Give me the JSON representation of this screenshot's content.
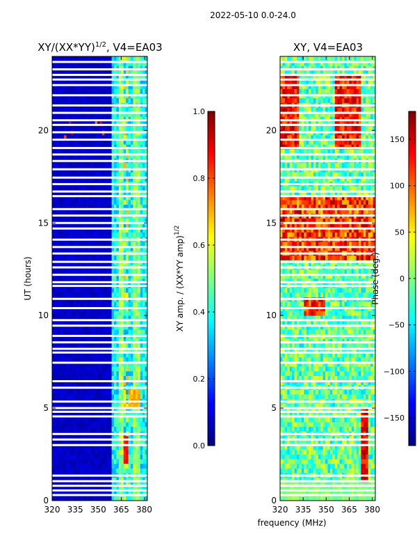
{
  "suptitle": "2022-05-10 0.0-24.0",
  "xlabel_shared": "frequency (MHz)",
  "colors": {
    "frame": "#000000",
    "gap": "#ffffff"
  },
  "chart_data": [
    {
      "type": "heatmap",
      "title": "XY/(XX*YY)",
      "title_sup": "1/2",
      "title_suffix": ", V4=EA03",
      "xlabel": "",
      "ylabel": "UT (hours)",
      "xlim": [
        320,
        382
      ],
      "ylim": [
        0,
        24
      ],
      "xticks": [
        320,
        335,
        350,
        365,
        380
      ],
      "yticks": [
        0,
        5,
        10,
        15,
        20
      ],
      "colormap": "jet",
      "colorbar": {
        "label": "XY amp. / (XX*YY amp)",
        "label_sup": "1/2",
        "range": [
          0.0,
          1.0
        ],
        "ticks": [
          "0.0",
          "0.2",
          "0.4",
          "0.6",
          "0.8",
          "1.0"
        ]
      },
      "description": "Normalized amplitude, low (~0.05) below 359 MHz, elevated (~0.3-0.6) in 359-382 MHz band with vertical bright stripes"
    },
    {
      "type": "heatmap",
      "title": "XY, V4=EA03",
      "xlabel": "frequency (MHz)",
      "ylabel": "",
      "xlim": [
        320,
        382
      ],
      "ylim": [
        0,
        24
      ],
      "xticks": [
        320,
        335,
        350,
        365,
        380
      ],
      "yticks": [
        0,
        5,
        10,
        15,
        20
      ],
      "colormap": "jet",
      "colorbar": {
        "label": "Phase (deg.)",
        "range": [
          -180,
          180
        ],
        "ticks": [
          "−150",
          "−100",
          "−50",
          "0",
          "50",
          "100",
          "150"
        ]
      },
      "description": "Cross-hand phase, mostly -60 to +40 deg with warm (~+100 to +180) patches near 13-16 h and 19-23 h"
    }
  ],
  "flagged_rows_hours": [
    0.3,
    0.55,
    0.8,
    1.05,
    1.35,
    3.0,
    3.3,
    3.6,
    4.55,
    4.8,
    5.0,
    5.35,
    6.1,
    6.45,
    7.45,
    8.0,
    8.2,
    8.55,
    8.9,
    9.45,
    9.75,
    10.4,
    10.9,
    11.6,
    11.8,
    12.2,
    12.6,
    12.9,
    13.35,
    13.7,
    14.1,
    14.7,
    15.0,
    15.4,
    15.75,
    16.45,
    16.7,
    17.1,
    17.45,
    17.9,
    18.35,
    18.7,
    19.05,
    19.5,
    19.9,
    20.3,
    20.55,
    20.95,
    21.35,
    21.9,
    22.45,
    22.75,
    23.0,
    23.3,
    23.7
  ]
}
